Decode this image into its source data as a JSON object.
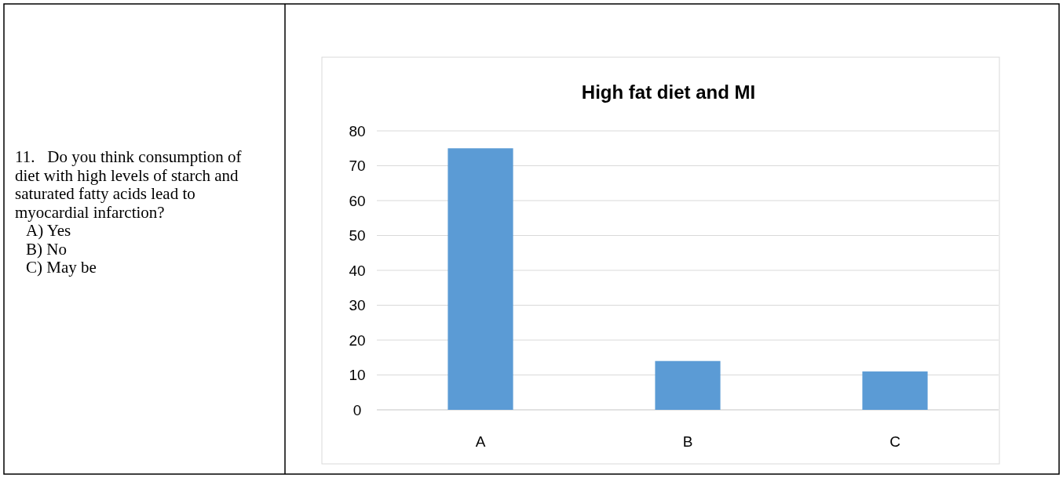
{
  "chart_data": {
    "type": "bar",
    "title": "High fat diet and MI",
    "categories": [
      "A",
      "B",
      "C"
    ],
    "values": [
      75,
      14,
      11
    ],
    "color": "#5b9bd5",
    "ylim": [
      0,
      80
    ],
    "yticks": [
      0,
      10,
      20,
      30,
      40,
      50,
      60,
      70,
      80
    ],
    "grid": "y",
    "annotations": [
      "11.   Do you think consumption of diet with high levels of starch and saturated fatty acids lead to myocardial infarction?",
      "A) Yes",
      "B) No",
      "C) May be"
    ]
  }
}
